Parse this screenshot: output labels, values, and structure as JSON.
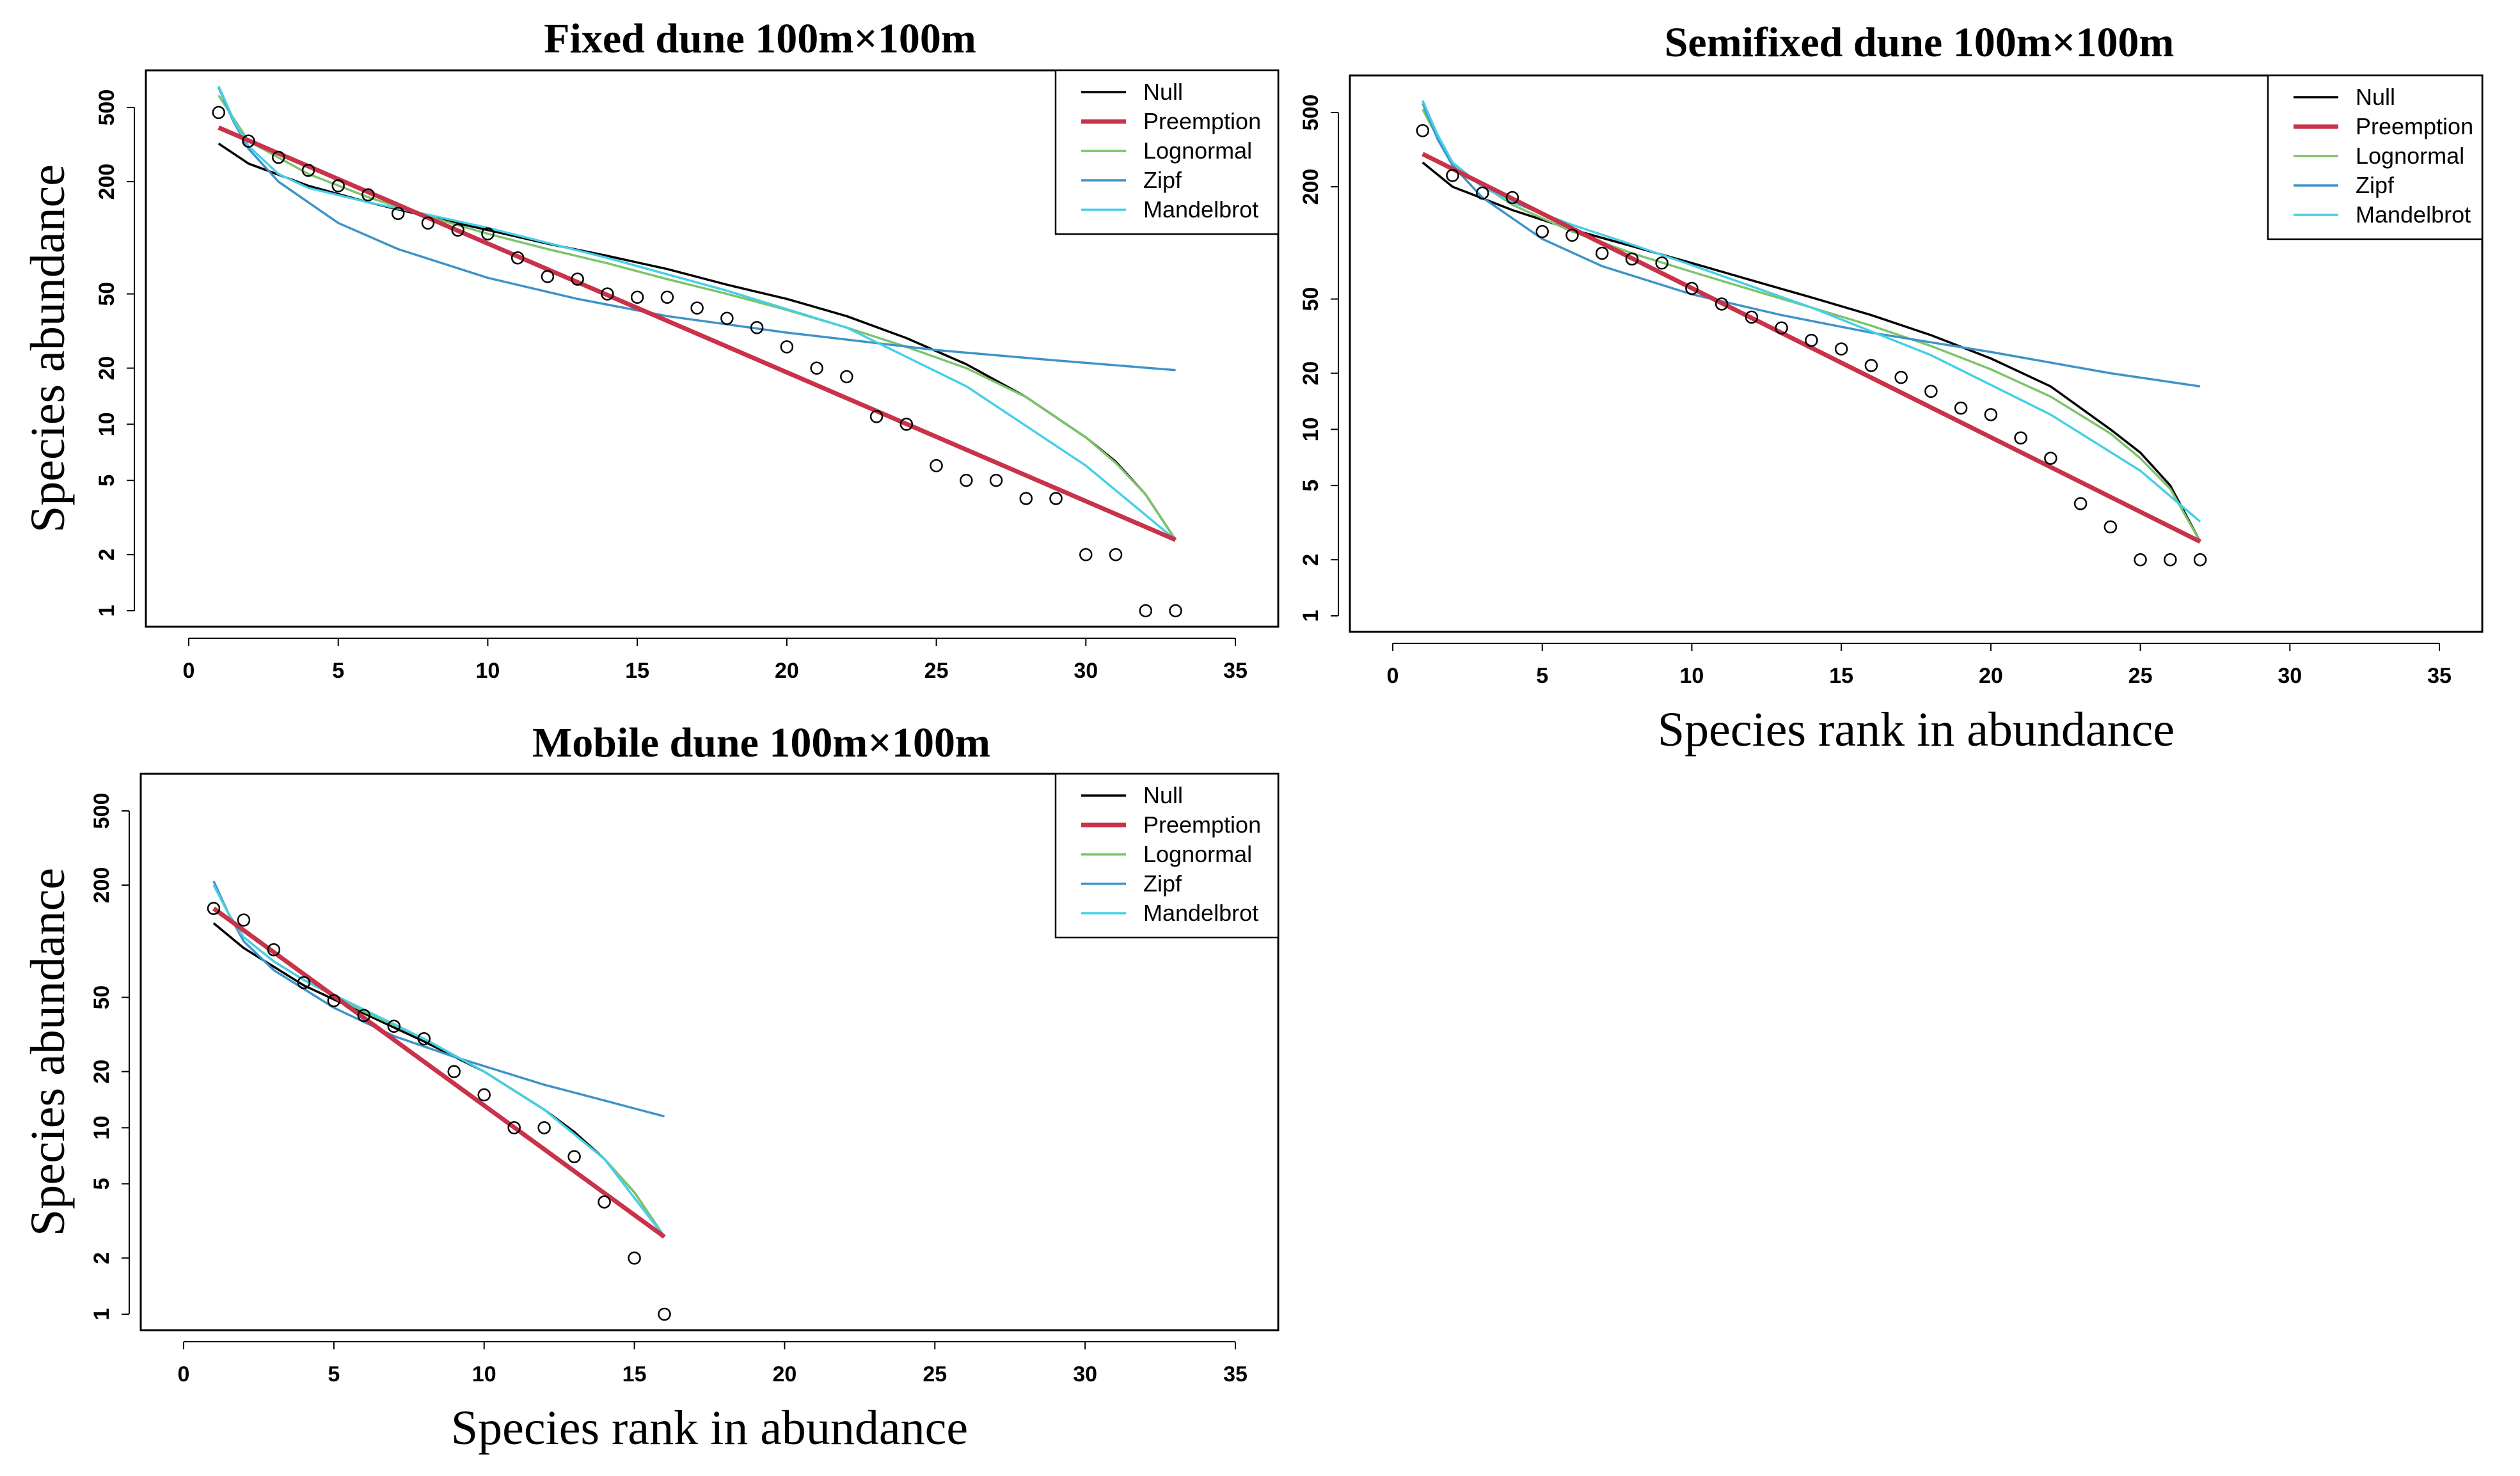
{
  "figure": {
    "type": "rank-abundance (radfit) panels",
    "model_colors": {
      "Null": "#000000",
      "Preemption": "#c8334a",
      "Lognormal": "#7cc46b",
      "Zipf": "#3f93c8",
      "Mandelbrot": "#46cfe8"
    }
  },
  "chart_data": [
    {
      "id": "fixed",
      "type": "scatter",
      "title": "Fixed dune  100m×100m",
      "xlabel": "",
      "ylabel": "Species abundance",
      "xlim": [
        0,
        35
      ],
      "ylim": [
        1,
        600
      ],
      "yscale": "log",
      "xticks": [
        "0",
        "5",
        "10",
        "15",
        "20",
        "25",
        "30",
        "35"
      ],
      "yticks": [
        "1",
        "2",
        "5",
        "10",
        "20",
        "50",
        "200",
        "500"
      ],
      "legend": [
        "Null",
        "Preemption",
        "Lognormal",
        "Zipf",
        "Mandelbrot"
      ],
      "legend_position": "top-right",
      "observed": {
        "x": [
          1,
          2,
          3,
          4,
          5,
          6,
          7,
          8,
          9,
          10,
          11,
          12,
          13,
          14,
          15,
          16,
          17,
          18,
          19,
          20,
          21,
          22,
          23,
          24,
          25,
          26,
          27,
          28,
          29,
          30,
          31,
          32,
          33
        ],
        "y": [
          470,
          330,
          270,
          230,
          190,
          170,
          135,
          120,
          110,
          105,
          78,
          62,
          60,
          50,
          48,
          48,
          42,
          37,
          33,
          26,
          20,
          18,
          11,
          10,
          6,
          5,
          5,
          4,
          4,
          2,
          2,
          1,
          1
        ]
      },
      "series": [
        {
          "name": "Null",
          "x": [
            1,
            2,
            4,
            6,
            8,
            10,
            12,
            14,
            16,
            18,
            20,
            22,
            24,
            26,
            28,
            30,
            31,
            32,
            33
          ],
          "y": [
            320,
            250,
            190,
            155,
            130,
            110,
            93,
            80,
            68,
            56,
            47,
            38,
            29,
            21,
            14,
            8.5,
            6.3,
            4.2,
            2.4
          ]
        },
        {
          "name": "Preemption",
          "x": [
            1,
            33
          ],
          "y": [
            390,
            2.4
          ]
        },
        {
          "name": "Lognormal",
          "x": [
            1,
            2,
            4,
            6,
            8,
            10,
            12,
            14,
            16,
            18,
            20,
            22,
            24,
            26,
            28,
            30,
            31,
            32,
            33
          ],
          "y": [
            580,
            330,
            220,
            165,
            130,
            105,
            87,
            73,
            60,
            50,
            41,
            33,
            26,
            20,
            14,
            8.5,
            6.2,
            4.2,
            2.4
          ]
        },
        {
          "name": "Zipf",
          "x": [
            1,
            1.5,
            2,
            3,
            5,
            7,
            10,
            13,
            16,
            20,
            25,
            29,
            33
          ],
          "y": [
            640,
            420,
            300,
            200,
            120,
            87,
            61,
            47,
            38,
            31,
            25,
            22,
            19.5
          ]
        },
        {
          "name": "Mandelbrot",
          "x": [
            1,
            1.5,
            2,
            3,
            4,
            6,
            8,
            10,
            14,
            18,
            22,
            26,
            30,
            33
          ],
          "y": [
            650,
            430,
            310,
            220,
            185,
            155,
            133,
            113,
            78,
            52,
            33,
            16,
            6,
            2.4
          ]
        }
      ]
    },
    {
      "id": "semifixed",
      "type": "scatter",
      "title": "Semifixed dune  100m×100m",
      "xlabel": "Species rank in abundance",
      "ylabel": "",
      "xlim": [
        0,
        35
      ],
      "ylim": [
        1,
        600
      ],
      "yscale": "log",
      "xticks": [
        "0",
        "5",
        "10",
        "15",
        "20",
        "25",
        "30",
        "35"
      ],
      "yticks": [
        "1",
        "2",
        "5",
        "10",
        "20",
        "50",
        "200",
        "500"
      ],
      "legend": [
        "Null",
        "Preemption",
        "Lognormal",
        "Zipf",
        "Mandelbrot"
      ],
      "legend_position": "top-right",
      "observed": {
        "x": [
          1,
          2,
          3,
          4,
          5,
          6,
          7,
          8,
          9,
          10,
          11,
          12,
          13,
          14,
          15,
          16,
          17,
          18,
          19,
          20,
          21,
          22,
          23,
          24,
          25,
          26,
          27
        ],
        "y": [
          400,
          230,
          185,
          175,
          115,
          110,
          88,
          82,
          78,
          57,
          47,
          40,
          35,
          30,
          27,
          22,
          19,
          16,
          13,
          12,
          9,
          7,
          4,
          3,
          2,
          2,
          2
        ]
      },
      "series": [
        {
          "name": "Null",
          "x": [
            1,
            2,
            4,
            6,
            8,
            10,
            12,
            14,
            16,
            18,
            20,
            22,
            24,
            25,
            26,
            27
          ],
          "y": [
            270,
            200,
            150,
            118,
            96,
            78,
            63,
            51,
            41,
            32,
            24,
            17,
            10,
            7.5,
            5,
            2.5
          ]
        },
        {
          "name": "Preemption",
          "x": [
            1,
            27
          ],
          "y": [
            300,
            2.5
          ]
        },
        {
          "name": "Lognormal",
          "x": [
            1,
            2,
            4,
            6,
            8,
            10,
            12,
            14,
            16,
            18,
            20,
            22,
            24,
            25,
            26,
            27
          ],
          "y": [
            520,
            260,
            160,
            115,
            88,
            70,
            56,
            45,
            36,
            28,
            21,
            15,
            9.5,
            7,
            4.8,
            2.5
          ]
        },
        {
          "name": "Zipf",
          "x": [
            1,
            1.5,
            2,
            3,
            5,
            7,
            10,
            13,
            16,
            20,
            24,
            27
          ],
          "y": [
            560,
            360,
            260,
            175,
            105,
            75,
            53,
            41,
            33,
            26,
            20,
            17
          ]
        },
        {
          "name": "Mandelbrot",
          "x": [
            1,
            1.5,
            2,
            3,
            4,
            6,
            8,
            10,
            14,
            18,
            22,
            25,
            27
          ],
          "y": [
            580,
            380,
            270,
            200,
            165,
            125,
            98,
            76,
            45,
            25,
            12,
            6,
            3.2
          ]
        }
      ]
    },
    {
      "id": "mobile",
      "type": "scatter",
      "title": "Mobile dune  100m×100m",
      "xlabel": "Species rank in abundance",
      "ylabel": "Species abundance",
      "xlim": [
        0,
        35
      ],
      "ylim": [
        1,
        600
      ],
      "yscale": "log",
      "xticks": [
        "0",
        "5",
        "10",
        "15",
        "20",
        "25",
        "30",
        "35"
      ],
      "yticks": [
        "1",
        "2",
        "5",
        "10",
        "20",
        "50",
        "200",
        "500"
      ],
      "legend": [
        "Null",
        "Preemption",
        "Lognormal",
        "Zipf",
        "Mandelbrot"
      ],
      "legend_position": "top-right",
      "observed": {
        "x": [
          1,
          2,
          3,
          4,
          5,
          6,
          7,
          8,
          9,
          10,
          11,
          12,
          13,
          14,
          15,
          16
        ],
        "y": [
          150,
          130,
          90,
          60,
          48,
          40,
          35,
          30,
          20,
          15,
          10,
          10,
          7,
          4,
          2,
          1
        ]
      },
      "series": [
        {
          "name": "Null",
          "x": [
            1,
            2,
            4,
            6,
            8,
            10,
            12,
            13,
            14,
            15,
            16
          ],
          "y": [
            125,
            92,
            58,
            41,
            29,
            20,
            12.5,
            9.5,
            6.8,
            4.5,
            2.6
          ]
        },
        {
          "name": "Preemption",
          "x": [
            1,
            16
          ],
          "y": [
            150,
            2.6
          ]
        },
        {
          "name": "Lognormal",
          "x": [
            1,
            1.5,
            2,
            3,
            4,
            6,
            8,
            10,
            12,
            14,
            15,
            16
          ],
          "y": [
            200,
            140,
            105,
            78,
            62,
            42,
            30,
            20,
            12.5,
            6.8,
            4.5,
            2.6
          ]
        },
        {
          "name": "Zipf",
          "x": [
            1,
            1.5,
            2,
            3,
            5,
            7,
            9,
            12,
            14,
            16
          ],
          "y": [
            210,
            140,
            100,
            70,
            44,
            31,
            24,
            17,
            14,
            11.5
          ]
        },
        {
          "name": "Mandelbrot",
          "x": [
            1,
            1.5,
            2,
            3,
            4,
            6,
            8,
            10,
            12,
            14,
            16
          ],
          "y": [
            200,
            140,
            105,
            78,
            62,
            43,
            30,
            20,
            12.5,
            6.8,
            2.6
          ]
        }
      ]
    }
  ]
}
